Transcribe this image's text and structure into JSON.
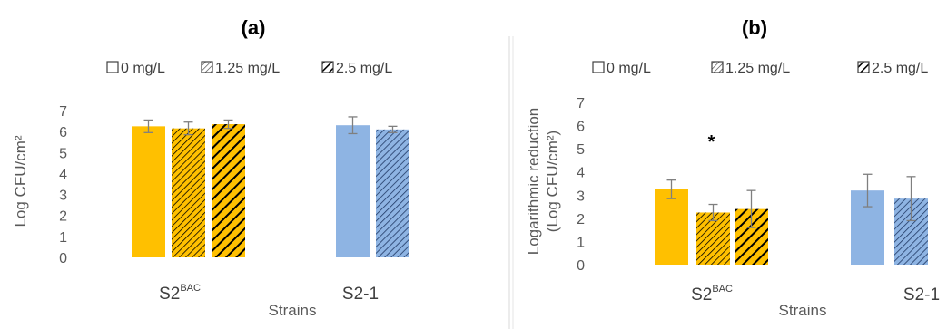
{
  "colors": {
    "series_0": "#FFC000",
    "series_1_2": "#8EB4E3",
    "hatch_a": "#000000",
    "hatch_b": "#1F3864",
    "error_bar": "#7F7F7F",
    "divider": "#D9D9D9"
  },
  "chart_data": [
    {
      "type": "bar",
      "title": "(a)",
      "xlabel": "Strains",
      "ylabel": "Log CFU/cm²",
      "ylim": [
        0,
        7
      ],
      "yticks": [
        "0",
        "1",
        "2",
        "3",
        "4",
        "5",
        "6",
        "7"
      ],
      "categories": [
        {
          "label": "S2",
          "sup": "BAC"
        },
        {
          "label": "S2-1",
          "sup": ""
        }
      ],
      "legend": [
        "0 mg/L",
        "1.25 mg/L",
        "2.5 mg/L"
      ],
      "legend_position": "top",
      "series": [
        {
          "name": "0 mg/L",
          "values": [
            6.25,
            6.3
          ],
          "errors": [
            0.3,
            0.4
          ]
        },
        {
          "name": "1.25 mg/L",
          "values": [
            6.15,
            6.1
          ],
          "errors": [
            0.3,
            0.15
          ]
        },
        {
          "name": "2.5 mg/L",
          "values": [
            6.35,
            null
          ],
          "errors": [
            0.2,
            null
          ]
        }
      ],
      "grid": false
    },
    {
      "type": "bar",
      "title": "(b)",
      "xlabel": "Strains",
      "ylabel": "Logarithmic reduction (Log CFU/cm²)",
      "ylabel_lines": [
        "Logarithmic reduction",
        "(Log CFU/cm²)"
      ],
      "ylim": [
        0,
        7
      ],
      "yticks": [
        "0",
        "1",
        "2",
        "3",
        "4",
        "5",
        "6",
        "7"
      ],
      "categories": [
        {
          "label": "S2",
          "sup": "BAC"
        },
        {
          "label": "S2-1",
          "sup": ""
        }
      ],
      "legend": [
        "0 mg/L",
        "1.25 mg/L",
        "2.5 mg/L"
      ],
      "legend_position": "top",
      "series": [
        {
          "name": "0 mg/L",
          "values": [
            3.25,
            3.2
          ],
          "errors": [
            0.4,
            0.7
          ]
        },
        {
          "name": "1.25 mg/L",
          "values": [
            2.25,
            2.85
          ],
          "errors": [
            0.35,
            0.95
          ]
        },
        {
          "name": "2.5 mg/L",
          "values": [
            2.4,
            null
          ],
          "errors": [
            0.8,
            null
          ]
        }
      ],
      "annotations": [
        {
          "text": "*",
          "category": 0,
          "y": 5.6
        }
      ],
      "grid": false
    }
  ]
}
